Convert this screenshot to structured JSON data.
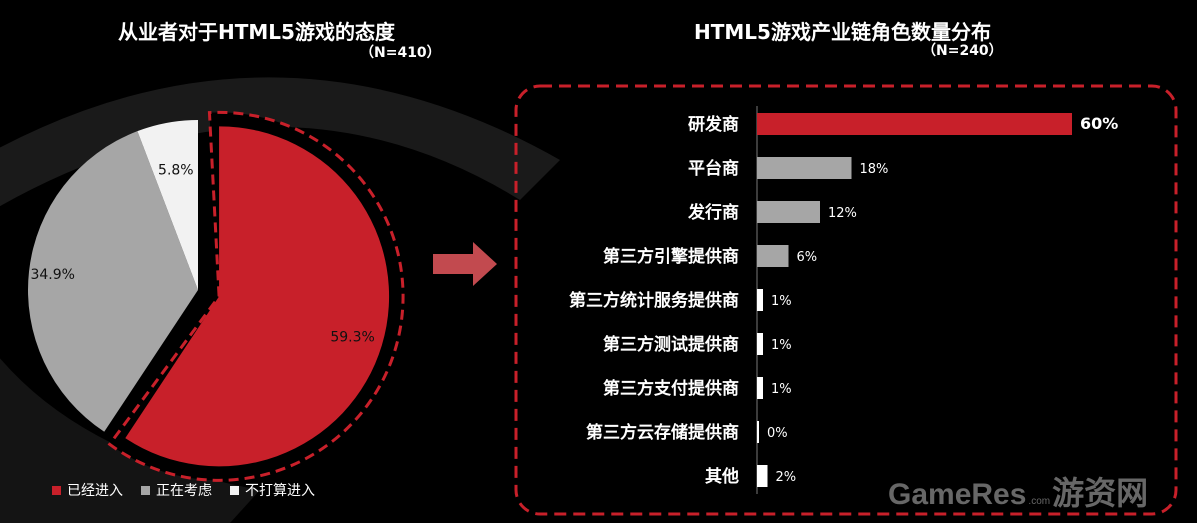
{
  "chart_data": [
    {
      "type": "pie",
      "title": "从业者对于HTML5游戏的态度",
      "subtitle": "（N=410）",
      "slices": [
        {
          "name": "已经进入",
          "value": 59.3,
          "label": "59.3%",
          "color": "#c8202a"
        },
        {
          "name": "正在考虑",
          "value": 34.9,
          "label": "34.9%",
          "color": "#a6a6a6"
        },
        {
          "name": "不打算进入",
          "value": 5.8,
          "label": "5.8%",
          "color": "#f2f2f2"
        }
      ],
      "legend_position": "bottom-left",
      "exploded_slice": "已经进入"
    },
    {
      "type": "bar",
      "orientation": "horizontal",
      "title": "HTML5游戏产业链角色数量分布",
      "subtitle": "（N=240）",
      "categories": [
        "研发商",
        "平台商",
        "发行商",
        "第三方引擎提供商",
        "第三方统计服务提供商",
        "第三方测试提供商",
        "第三方支付提供商",
        "第三方云存储提供商",
        "其他"
      ],
      "values": [
        60,
        18,
        12,
        6,
        1,
        1,
        1,
        0,
        2
      ],
      "labels": [
        "60%",
        "18%",
        "12%",
        "6%",
        "1%",
        "1%",
        "1%",
        "0%",
        "2%"
      ],
      "colors": [
        "#c8202a",
        "#a6a6a6",
        "#a6a6a6",
        "#a6a6a6",
        "#ffffff",
        "#ffffff",
        "#ffffff",
        "#ffffff",
        "#ffffff"
      ],
      "xlim": [
        0,
        60
      ],
      "grid": false
    }
  ],
  "watermark": {
    "brand": "GameRes",
    "domain": ".com",
    "cn": "游资网"
  },
  "colors": {
    "accent": "#c8202a",
    "grey": "#a6a6a6",
    "white": "#f2f2f2",
    "arrow": "#c24a4f",
    "background": "#000000"
  }
}
